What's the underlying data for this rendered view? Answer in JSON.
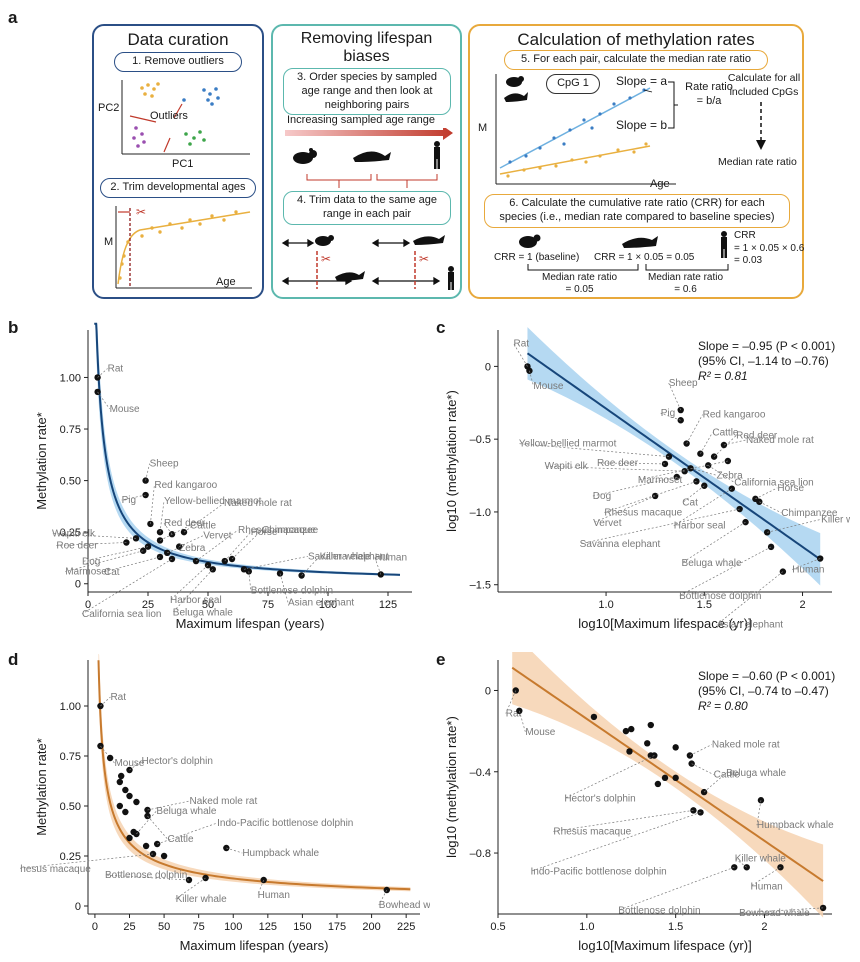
{
  "panel_labels": {
    "a": "a",
    "b": "b",
    "c": "c",
    "d": "d",
    "e": "e"
  },
  "colors": {
    "blue_box": "#2b4f86",
    "teal_box": "#5cb8ae",
    "orange_box": "#e8a93c",
    "blue_line": "#17467a",
    "blue_band": "#a8d2f0",
    "orange_line": "#c77a2e",
    "orange_band": "#f6d2b0",
    "label_gray": "#7a7a7a",
    "red_arrow": "#c0392b"
  },
  "panel_a": {
    "curation": {
      "title": "Data curation",
      "step1": "1. Remove outliers",
      "pc2": "PC2",
      "pc1": "PC1",
      "outliers": "Outliers",
      "step2": "2. Trim developmental ages",
      "m": "M",
      "age": "Age"
    },
    "biases": {
      "title_line1": "Removing lifespan",
      "title_line2": "biases",
      "step3": "3. Order species by sampled age range and then look at neighboring pairs",
      "increasing": "Increasing sampled age range",
      "step4": "4. Trim data to the same age range in each pair"
    },
    "rates": {
      "title": "Calculation of methylation rates",
      "step5": "5. For each pair, calculate the median rate ratio",
      "cpg": "CpG 1",
      "slope_a": "Slope = a",
      "slope_b": "Slope = b",
      "rate_ratio": "Rate ratio = b/a",
      "m": "M",
      "age": "Age",
      "calc_all": "Calculate for all included CpGs",
      "median_rr": "Median rate ratio",
      "step6": "6. Calculate the cumulative rate ratio (CRR) for each species (i.e., median rate compared to baseline species)",
      "crr1": "CRR = 1 (baseline)",
      "crr2": "CRR = 1 × 0.05 = 0.05",
      "crr3_l1": "CRR",
      "crr3_l2": "= 1 × 0.05 × 0.6",
      "crr3_l3": "= 0.03",
      "mrr1_l1": "Median rate ratio",
      "mrr1_l2": "= 0.05",
      "mrr2_l1": "Median rate ratio",
      "mrr2_l2": "= 0.6"
    }
  },
  "chart_data": [
    {
      "id": "b",
      "type": "scatter",
      "xlabel": "Maximum lifespan (years)",
      "ylabel": "Methylation rate*",
      "xlim": [
        0,
        135
      ],
      "ylim": [
        -0.04,
        1.23
      ],
      "xticks": [
        0,
        25,
        50,
        75,
        100,
        125
      ],
      "yticks": [
        0,
        0.25,
        0.5,
        0.75,
        1.0
      ],
      "ytick_labels": [
        "0",
        "0.25",
        "0.50",
        "0.75",
        "1.00"
      ],
      "fit": {
        "a": 4.0,
        "b": -0.93
      },
      "points": [
        {
          "x": 4,
          "y": 1.0,
          "label": "Rat"
        },
        {
          "x": 4,
          "y": 0.93,
          "label": "Mouse"
        },
        {
          "x": 24,
          "y": 0.5,
          "label": "Sheep"
        },
        {
          "x": 24,
          "y": 0.43,
          "label": "Pig"
        },
        {
          "x": 26,
          "y": 0.29,
          "label": "Red kangaroo"
        },
        {
          "x": 30,
          "y": 0.25,
          "label": "Yellow-bellied marmot"
        },
        {
          "x": 35,
          "y": 0.24,
          "label": "Red deer"
        },
        {
          "x": 30,
          "y": 0.21,
          "label": "Cattle"
        },
        {
          "x": 40,
          "y": 0.25,
          "label": "Naked mole rat"
        },
        {
          "x": 20,
          "y": 0.22,
          "label": "Wapiti elk"
        },
        {
          "x": 16,
          "y": 0.2,
          "label": "Roe deer"
        },
        {
          "x": 25,
          "y": 0.18,
          "label": "Dog"
        },
        {
          "x": 23,
          "y": 0.16,
          "label": "Marmoset"
        },
        {
          "x": 38,
          "y": 0.18,
          "label": "Vervet"
        },
        {
          "x": 33,
          "y": 0.15,
          "label": "Zebra"
        },
        {
          "x": 30,
          "y": 0.13,
          "label": "Cat"
        },
        {
          "x": 45,
          "y": 0.11,
          "label": "Rhesus macaque"
        },
        {
          "x": 35,
          "y": 0.12,
          "label": "California sea lion"
        },
        {
          "x": 50,
          "y": 0.09,
          "label": "Harbor seal"
        },
        {
          "x": 57,
          "y": 0.11,
          "label": "Horse"
        },
        {
          "x": 60,
          "y": 0.12,
          "label": "Chimpanzee"
        },
        {
          "x": 65,
          "y": 0.07,
          "label": "Savanna elephant"
        },
        {
          "x": 52,
          "y": 0.07,
          "label": "Beluga whale"
        },
        {
          "x": 67,
          "y": 0.06,
          "label": "Bottlenose dolphin"
        },
        {
          "x": 89,
          "y": 0.04,
          "label": "Killer whale"
        },
        {
          "x": 80,
          "y": 0.05,
          "label": "Asian elephant"
        },
        {
          "x": 122,
          "y": 0.045,
          "label": "Human"
        }
      ]
    },
    {
      "id": "c",
      "type": "scatter",
      "xlabel": "log10[Maximum lifespace (yr)]",
      "ylabel": "log10 (methylation rate*)",
      "xlim": [
        0.45,
        2.15
      ],
      "ylim": [
        -1.55,
        0.25
      ],
      "xticks": [
        1.0,
        1.5,
        2.0
      ],
      "yticks": [
        0,
        -0.5,
        -1.0,
        -1.5
      ],
      "ytick_labels": [
        "0",
        "–0.5",
        "–1.0",
        "–1.5"
      ],
      "annotation": {
        "line1": "Slope = –0.95 (P < 0.001)",
        "line2": "(95% CI, –1.14 to –0.76)",
        "line3": "R² = 0.81"
      },
      "fit": {
        "slope": -0.95,
        "intercept": 0.66,
        "x0": 0.6,
        "x1": 2.09
      },
      "points": [
        {
          "x": 0.6,
          "y": 0.0,
          "label": "Rat"
        },
        {
          "x": 0.61,
          "y": -0.03,
          "label": "Mouse"
        },
        {
          "x": 1.38,
          "y": -0.3,
          "label": "Sheep"
        },
        {
          "x": 1.38,
          "y": -0.37,
          "label": "Pig"
        },
        {
          "x": 1.41,
          "y": -0.53,
          "label": "Red kangaroo"
        },
        {
          "x": 1.48,
          "y": -0.6,
          "label": "Cattle"
        },
        {
          "x": 1.55,
          "y": -0.62,
          "label": "Red deer"
        },
        {
          "x": 1.6,
          "y": -0.54,
          "label": "Naked mole rat"
        },
        {
          "x": 1.32,
          "y": -0.62,
          "label": "Yellow-bellied marmot"
        },
        {
          "x": 1.3,
          "y": -0.67,
          "label": "Roe deer"
        },
        {
          "x": 1.4,
          "y": -0.72,
          "label": "Wapiti elk"
        },
        {
          "x": 1.43,
          "y": -0.7,
          "label": "Zebra"
        },
        {
          "x": 1.36,
          "y": -0.76,
          "label": "Dog"
        },
        {
          "x": 1.52,
          "y": -0.68,
          "label": "California sea lion"
        },
        {
          "x": 1.62,
          "y": -0.65,
          "label": "Marmoset"
        },
        {
          "x": 1.5,
          "y": -0.82,
          "label": "Cat"
        },
        {
          "x": 1.25,
          "y": -0.89,
          "label": "Vervet"
        },
        {
          "x": 1.46,
          "y": -0.79,
          "label": "Rhesus macaque"
        },
        {
          "x": 1.64,
          "y": -0.84,
          "label": "Harbor seal"
        },
        {
          "x": 1.76,
          "y": -0.91,
          "label": "Horse"
        },
        {
          "x": 1.78,
          "y": -0.93,
          "label": "Chimpanzee"
        },
        {
          "x": 1.68,
          "y": -0.98,
          "label": "Savanna elephant"
        },
        {
          "x": 1.71,
          "y": -1.07,
          "label": "Beluga whale"
        },
        {
          "x": 1.82,
          "y": -1.14,
          "label": "Killer whale"
        },
        {
          "x": 1.84,
          "y": -1.24,
          "label": "Bottlenose dolphin"
        },
        {
          "x": 1.9,
          "y": -1.41,
          "label": "Asian elephant"
        },
        {
          "x": 2.09,
          "y": -1.32,
          "label": "Human"
        }
      ]
    },
    {
      "id": "d",
      "type": "scatter",
      "xlabel": "Maximum lifespan (years)",
      "ylabel": "Methylation rate*",
      "xlim": [
        -5,
        235
      ],
      "ylim": [
        -0.04,
        1.23
      ],
      "xticks": [
        0,
        25,
        50,
        75,
        100,
        125,
        150,
        175,
        200,
        225
      ],
      "yticks": [
        0,
        0.25,
        0.5,
        0.75,
        1.0
      ],
      "ytick_labels": [
        "0",
        "0.25",
        "0.50",
        "0.75",
        "1.00"
      ],
      "fit": {
        "a": 2.18,
        "b": -0.6
      },
      "points": [
        {
          "x": 4,
          "y": 1.0,
          "label": "Rat"
        },
        {
          "x": 4,
          "y": 0.8,
          "label": "Mouse"
        },
        {
          "x": 11,
          "y": 0.74,
          "label": ""
        },
        {
          "x": 18,
          "y": 0.62,
          "label": ""
        },
        {
          "x": 19,
          "y": 0.65,
          "label": ""
        },
        {
          "x": 25,
          "y": 0.68,
          "label": "Hector's dolphin"
        },
        {
          "x": 22,
          "y": 0.58,
          "label": ""
        },
        {
          "x": 25,
          "y": 0.55,
          "label": ""
        },
        {
          "x": 30,
          "y": 0.52,
          "label": ""
        },
        {
          "x": 18,
          "y": 0.5,
          "label": ""
        },
        {
          "x": 22,
          "y": 0.47,
          "label": ""
        },
        {
          "x": 38,
          "y": 0.48,
          "label": "Naked mole rat"
        },
        {
          "x": 38,
          "y": 0.45,
          "label": "Cattle"
        },
        {
          "x": 28,
          "y": 0.37,
          "label": ""
        },
        {
          "x": 30,
          "y": 0.36,
          "label": "Beluga whale"
        },
        {
          "x": 45,
          "y": 0.31,
          "label": "Indo-Pacific bottlenose dolphin"
        },
        {
          "x": 25,
          "y": 0.34,
          "label": ""
        },
        {
          "x": 37,
          "y": 0.3,
          "label": ""
        },
        {
          "x": 42,
          "y": 0.26,
          "label": "Rhesus macaque"
        },
        {
          "x": 50,
          "y": 0.25,
          "label": ""
        },
        {
          "x": 95,
          "y": 0.29,
          "label": "Humpback whale"
        },
        {
          "x": 68,
          "y": 0.13,
          "label": "Bottlenose dolphin"
        },
        {
          "x": 80,
          "y": 0.14,
          "label": "Killer whale"
        },
        {
          "x": 122,
          "y": 0.13,
          "label": "Human"
        },
        {
          "x": 211,
          "y": 0.08,
          "label": "Bowhead whale"
        }
      ]
    },
    {
      "id": "e",
      "type": "scatter",
      "xlabel": "log10[Maximum lifespace (yr)]",
      "ylabel": "log10 (methylation rate*)",
      "xlim": [
        0.5,
        2.38
      ],
      "ylim": [
        -1.1,
        0.15
      ],
      "xticks": [
        0.5,
        1.0,
        1.5,
        2.0
      ],
      "yticks": [
        0,
        -0.4,
        -0.8
      ],
      "ytick_labels": [
        "0",
        "–0.4",
        "–0.8"
      ],
      "annotation": {
        "line1": "Slope = –0.60 (P < 0.001)",
        "line2": "(95% CI, –0.74 to –0.47)",
        "line3": "R² = 0.80"
      },
      "fit": {
        "slope": -0.6,
        "intercept": 0.46,
        "x0": 0.58,
        "x1": 2.33
      },
      "points": [
        {
          "x": 0.6,
          "y": 0.0,
          "label": "Rat"
        },
        {
          "x": 0.62,
          "y": -0.1,
          "label": "Mouse"
        },
        {
          "x": 1.04,
          "y": -0.13,
          "label": ""
        },
        {
          "x": 1.22,
          "y": -0.2,
          "label": ""
        },
        {
          "x": 1.25,
          "y": -0.19,
          "label": ""
        },
        {
          "x": 1.24,
          "y": -0.3,
          "label": ""
        },
        {
          "x": 1.34,
          "y": -0.26,
          "label": ""
        },
        {
          "x": 1.36,
          "y": -0.17,
          "label": ""
        },
        {
          "x": 1.36,
          "y": -0.32,
          "label": ""
        },
        {
          "x": 1.38,
          "y": -0.32,
          "label": "Hector's dolphin"
        },
        {
          "x": 1.4,
          "y": -0.46,
          "label": ""
        },
        {
          "x": 1.44,
          "y": -0.43,
          "label": ""
        },
        {
          "x": 1.5,
          "y": -0.43,
          "label": ""
        },
        {
          "x": 1.5,
          "y": -0.28,
          "label": ""
        },
        {
          "x": 1.58,
          "y": -0.32,
          "label": "Naked mole rat"
        },
        {
          "x": 1.59,
          "y": -0.36,
          "label": "Cattle"
        },
        {
          "x": 1.6,
          "y": -0.59,
          "label": "Rhesus macaque"
        },
        {
          "x": 1.66,
          "y": -0.5,
          "label": "Beluga whale"
        },
        {
          "x": 1.64,
          "y": -0.6,
          "label": "Indo-Pacific bottlenose dolphin"
        },
        {
          "x": 1.83,
          "y": -0.87,
          "label": "Bottlenose dolphin"
        },
        {
          "x": 1.9,
          "y": -0.87,
          "label": "Killer whale"
        },
        {
          "x": 1.98,
          "y": -0.54,
          "label": "Humpback whale"
        },
        {
          "x": 2.09,
          "y": -0.87,
          "label": "Human"
        },
        {
          "x": 2.33,
          "y": -1.07,
          "label": "Bowhead whale"
        }
      ]
    }
  ]
}
